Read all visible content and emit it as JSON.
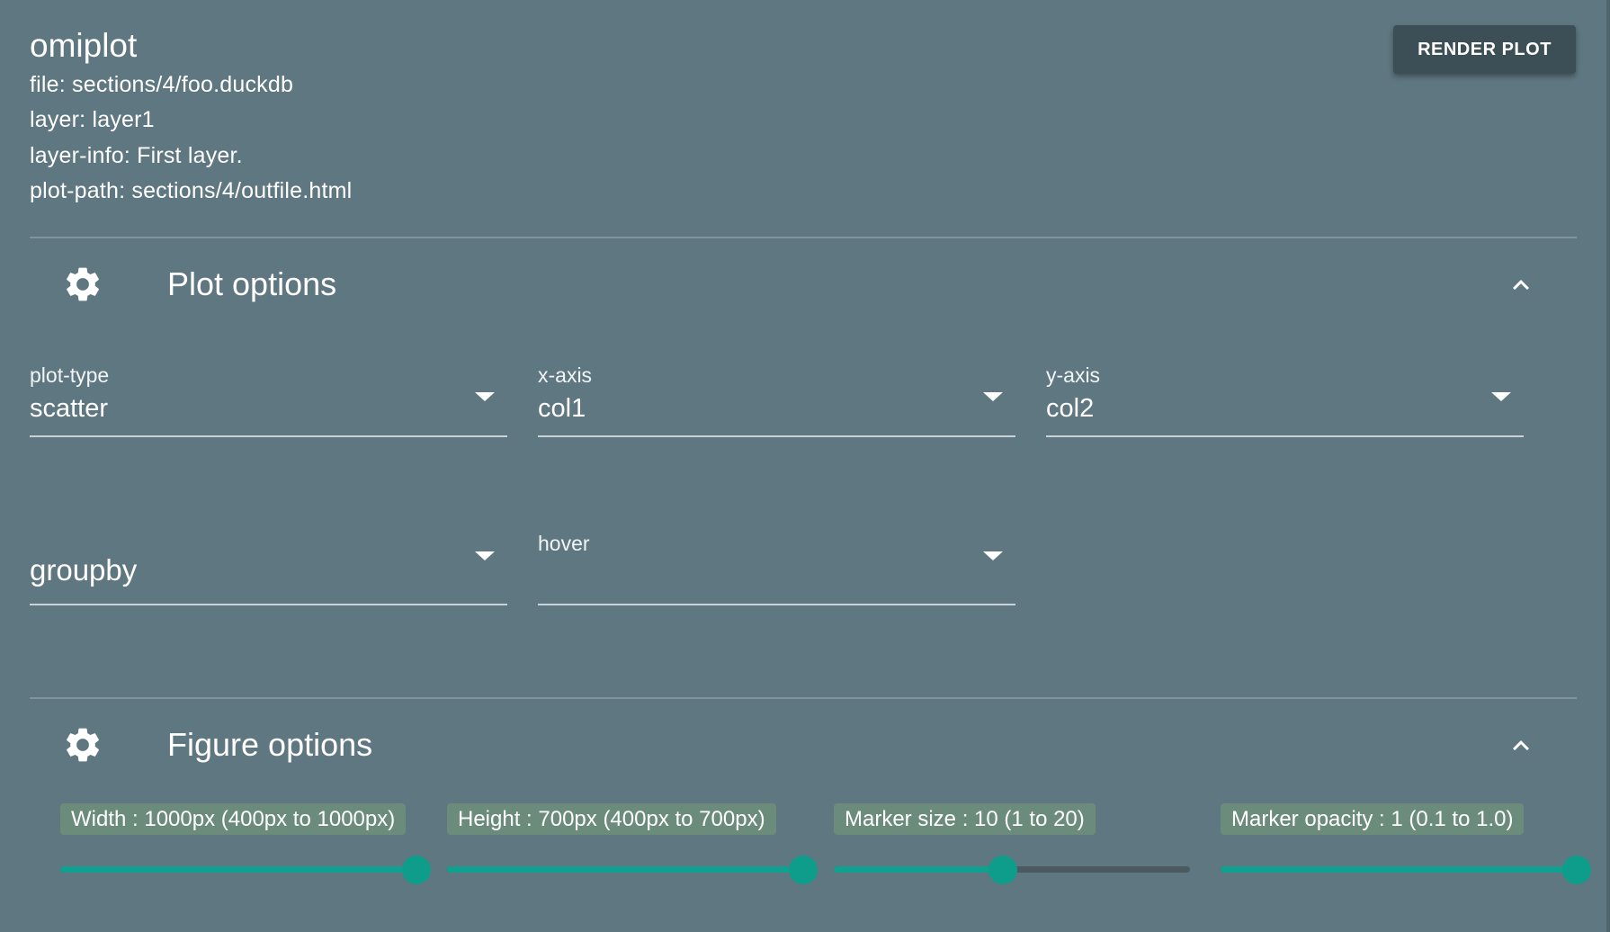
{
  "app": {
    "title": "omiplot",
    "file": "file: sections/4/foo.duckdb",
    "layer": "layer: layer1",
    "layer_info": "layer-info: First layer.",
    "plot_path": "plot-path: sections/4/outfile.html",
    "render_button": "RENDER PLOT"
  },
  "plot_options": {
    "title": "Plot options",
    "icon": "gear-icon",
    "collapse_icon": "chevron-up-icon",
    "fields": {
      "plot_type": {
        "label": "plot-type",
        "value": "scatter"
      },
      "x_axis": {
        "label": "x-axis",
        "value": "col1"
      },
      "y_axis": {
        "label": "y-axis",
        "value": "col2"
      },
      "groupby": {
        "label": "groupby",
        "value": ""
      },
      "hover": {
        "label": "hover",
        "value": ""
      }
    }
  },
  "figure_options": {
    "title": "Figure options",
    "icon": "gear-icon",
    "collapse_icon": "chevron-up-icon",
    "sliders": {
      "width": {
        "label": "Width : 1000px (400px to 1000px)",
        "value": 1000,
        "min": 400,
        "max": 1000
      },
      "height": {
        "label": "Height : 700px (400px to 700px)",
        "value": 700,
        "min": 400,
        "max": 700
      },
      "marker_size": {
        "label": "Marker size : 10 (1 to 20)",
        "value": 10,
        "min": 1,
        "max": 20
      },
      "marker_opacity": {
        "label": "Marker opacity : 1 (0.1 to 1.0)",
        "value": 1,
        "min": 0.1,
        "max": 1.0
      }
    }
  },
  "colors": {
    "background": "#5f7780",
    "accent": "#0f9d8b",
    "badge": "#6b8c7a",
    "button": "#3d4f56"
  }
}
